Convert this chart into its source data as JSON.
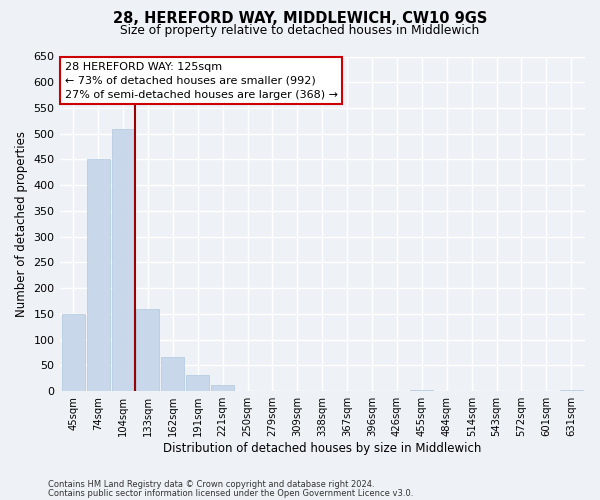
{
  "title": "28, HEREFORD WAY, MIDDLEWICH, CW10 9GS",
  "subtitle": "Size of property relative to detached houses in Middlewich",
  "xlabel": "Distribution of detached houses by size in Middlewich",
  "ylabel": "Number of detached properties",
  "bar_color": "#c8d8ea",
  "bar_edge_color": "#b0c8e0",
  "categories": [
    "45sqm",
    "74sqm",
    "104sqm",
    "133sqm",
    "162sqm",
    "191sqm",
    "221sqm",
    "250sqm",
    "279sqm",
    "309sqm",
    "338sqm",
    "367sqm",
    "396sqm",
    "426sqm",
    "455sqm",
    "484sqm",
    "514sqm",
    "543sqm",
    "572sqm",
    "601sqm",
    "631sqm"
  ],
  "values": [
    150,
    450,
    510,
    160,
    67,
    32,
    13,
    0,
    0,
    0,
    0,
    0,
    0,
    0,
    2,
    0,
    0,
    0,
    0,
    0,
    3
  ],
  "ylim": [
    0,
    650
  ],
  "yticks": [
    0,
    50,
    100,
    150,
    200,
    250,
    300,
    350,
    400,
    450,
    500,
    550,
    600,
    650
  ],
  "vline_x_index": 2,
  "vline_color": "#990000",
  "annotation_text": "28 HEREFORD WAY: 125sqm\n← 73% of detached houses are smaller (992)\n27% of semi-detached houses are larger (368) →",
  "annotation_box_color": "white",
  "annotation_box_edge": "#cc0000",
  "footer1": "Contains HM Land Registry data © Crown copyright and database right 2024.",
  "footer2": "Contains public sector information licensed under the Open Government Licence v3.0.",
  "background_color": "#eef2f7"
}
